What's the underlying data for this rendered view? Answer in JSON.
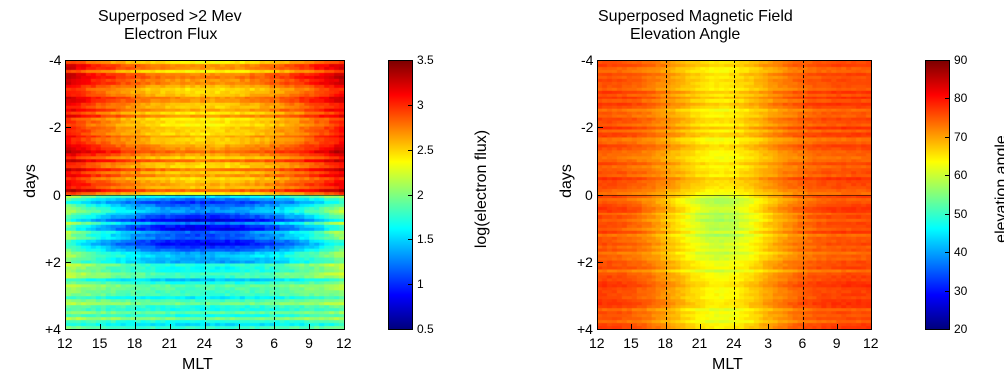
{
  "chart_data": [
    {
      "type": "heatmap",
      "title_line1": "Superposed >2 Mev",
      "title_line2": "Electron Flux",
      "xlabel": "MLT",
      "ylabel": "days",
      "x_tick_labels": [
        "12",
        "15",
        "18",
        "21",
        "24",
        "3",
        "6",
        "9",
        "12"
      ],
      "y_tick_labels": [
        "-4",
        "-2",
        "0",
        "+2",
        "+4"
      ],
      "y_range_days": [
        -4,
        4
      ],
      "colorbar": {
        "label": "log(electron flux)",
        "range": [
          0.5,
          3.5
        ],
        "ticks": [
          "3.5",
          "3",
          "2.5",
          "2",
          "1.5",
          "1",
          "0.5"
        ]
      },
      "dashed_mlt_lines": [
        "18",
        "24",
        "6"
      ],
      "pattern": {
        "before_zero_mean": 2.95,
        "after_zero_mean": 1.8,
        "minimum_value": 0.8,
        "minimum_location": "0 to +2 days near MLT 24"
      }
    },
    {
      "type": "heatmap",
      "title_line1": "Superposed Magnetic Field",
      "title_line2": "Elevation Angle",
      "xlabel": "MLT",
      "ylabel": "days",
      "x_tick_labels": [
        "12",
        "15",
        "18",
        "21",
        "24",
        "3",
        "6",
        "9",
        "12"
      ],
      "y_tick_labels": [
        "-4",
        "-2",
        "0",
        "+2",
        "+4"
      ],
      "y_range_days": [
        -4,
        4
      ],
      "colorbar": {
        "label": "elevation angle",
        "range": [
          20,
          90
        ],
        "ticks": [
          "90",
          "80",
          "70",
          "60",
          "50",
          "40",
          "30",
          "20"
        ]
      },
      "dashed_mlt_lines": [
        "18",
        "24",
        "6"
      ],
      "pattern": {
        "edge_mean": 76,
        "center_before_zero_mean": 65,
        "center_after_zero_mean": 57,
        "minimum_value": 52,
        "minimum_location": "0 to +1 days near MLT 24"
      }
    }
  ]
}
